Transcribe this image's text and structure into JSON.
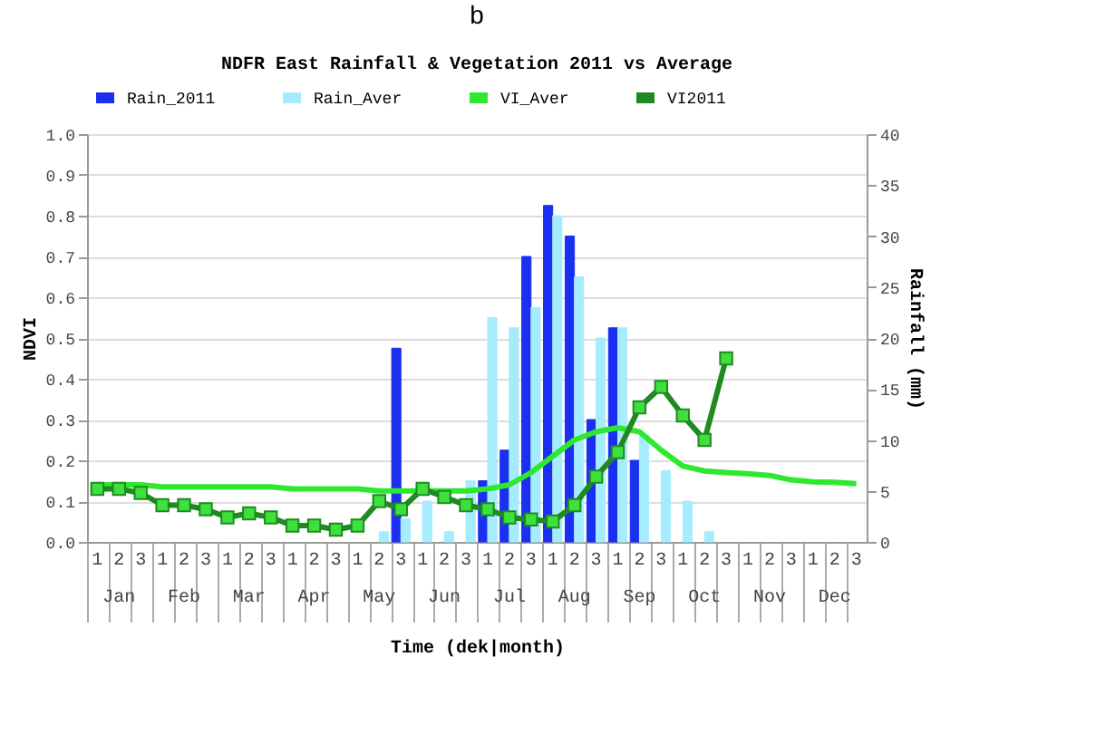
{
  "chart_data": {
    "type": "bar",
    "title": "NDFR East Rainfall & Vegetation 2011 vs Average",
    "xlabel": "Time (dek|month)",
    "ylabel": "NDVI",
    "y2label": "Rainfall (mm)",
    "annotations": [
      "b",
      "Jan",
      "Feb",
      "Mar",
      "Apr",
      "May",
      "Jun",
      "Jul",
      "Aug",
      "Sep",
      "Oct",
      "Nov",
      "Dec"
    ],
    "categories": [
      "1",
      "2",
      "3",
      "1",
      "2",
      "3",
      "1",
      "2",
      "3",
      "1",
      "2",
      "3",
      "1",
      "2",
      "3",
      "1",
      "2",
      "3",
      "1",
      "2",
      "3",
      "1",
      "2",
      "3",
      "1",
      "2",
      "3",
      "1",
      "2",
      "3",
      "1",
      "2",
      "3",
      "1",
      "2",
      "3"
    ],
    "series": [
      {
        "name": "Rain_2011",
        "type": "bar",
        "axis": "y2",
        "color": "#1a2ff0",
        "values": [
          null,
          null,
          null,
          null,
          null,
          null,
          null,
          null,
          null,
          null,
          null,
          null,
          null,
          null,
          19,
          null,
          null,
          null,
          6,
          9,
          28,
          33,
          30,
          12,
          21,
          8,
          null,
          null,
          null,
          null,
          null,
          null,
          null,
          null,
          null,
          null
        ]
      },
      {
        "name": "Rain_Aver",
        "type": "bar",
        "axis": "y2",
        "color": "#a6ecff",
        "values": [
          null,
          null,
          null,
          null,
          null,
          null,
          null,
          null,
          null,
          null,
          null,
          null,
          null,
          1,
          2.3,
          4,
          1,
          6,
          22,
          21,
          23,
          32,
          26,
          20,
          21,
          10.5,
          7,
          4,
          1,
          null,
          null,
          null,
          null,
          null,
          null,
          null
        ]
      },
      {
        "name": "VI_Aver",
        "type": "line",
        "color": "#2ee82e",
        "marker": "none",
        "values": [
          0.14,
          0.14,
          0.14,
          0.135,
          0.135,
          0.135,
          0.135,
          0.135,
          0.135,
          0.13,
          0.13,
          0.13,
          0.13,
          0.125,
          0.125,
          0.125,
          0.125,
          0.125,
          0.13,
          0.14,
          0.17,
          0.21,
          0.25,
          0.27,
          0.28,
          0.27,
          0.225,
          0.186,
          0.174,
          0.17,
          0.167,
          0.163,
          0.152,
          0.147,
          0.146,
          0.143
        ]
      },
      {
        "name": "VI2011",
        "type": "line",
        "color": "#1f8a1f",
        "marker": "square",
        "values": [
          0.13,
          0.13,
          0.12,
          0.09,
          0.09,
          0.08,
          0.06,
          0.07,
          0.06,
          0.04,
          0.04,
          0.03,
          0.04,
          0.1,
          0.08,
          0.13,
          0.11,
          0.09,
          0.08,
          0.06,
          0.055,
          0.05,
          0.09,
          0.16,
          0.22,
          0.33,
          0.38,
          0.31,
          0.25,
          0.45,
          null,
          null,
          null,
          null,
          null,
          null
        ]
      }
    ],
    "ylim": [
      0,
      1.0
    ],
    "yticks": [
      {
        "value": 0,
        "label": "0.0"
      },
      {
        "value": 0.1,
        "label": "0.1"
      },
      {
        "value": 0.2,
        "label": "0.2"
      },
      {
        "value": 0.3,
        "label": "0.3"
      },
      {
        "value": 0.4,
        "label": "0.4"
      },
      {
        "value": 0.5,
        "label": "0.5"
      },
      {
        "value": 0.6,
        "label": "0.6"
      },
      {
        "value": 0.7,
        "label": "0.7"
      },
      {
        "value": 0.8,
        "label": "0.8"
      },
      {
        "value": 0.9,
        "label": "0.9"
      },
      {
        "value": 1,
        "label": "1.0"
      }
    ],
    "y2lim": [
      0,
      40
    ],
    "y2ticks": [
      0,
      5,
      10,
      15,
      20,
      25,
      30,
      35,
      40
    ],
    "grid": "y",
    "legend": "top"
  }
}
